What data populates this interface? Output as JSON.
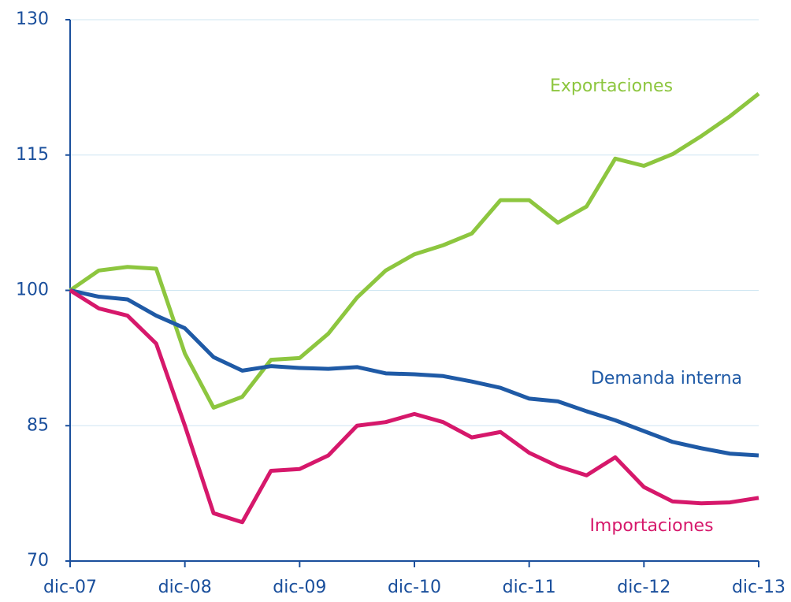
{
  "chart_data": {
    "type": "line",
    "categories": [
      "dic-07",
      null,
      null,
      null,
      "dic-08",
      null,
      null,
      null,
      "dic-09",
      null,
      null,
      null,
      "dic-10",
      null,
      null,
      null,
      "dic-11",
      null,
      null,
      null,
      "dic-12",
      null,
      null,
      null,
      "dic-13"
    ],
    "series": [
      {
        "name": "Exportaciones",
        "color": "#8dc63f",
        "values": [
          100,
          102.2,
          102.6,
          102.4,
          93,
          87,
          88.2,
          92.3,
          92.5,
          95.2,
          99.2,
          102.2,
          104,
          105,
          106.3,
          110,
          110,
          107.5,
          109.3,
          114.6,
          113.8,
          115.1,
          117.1,
          119.3,
          121.8
        ]
      },
      {
        "name": "Demanda interna",
        "color": "#1f5aa6",
        "values": [
          100,
          99.3,
          99,
          97.2,
          95.8,
          92.6,
          91.1,
          91.6,
          91.4,
          91.3,
          91.5,
          90.8,
          90.7,
          90.5,
          89.9,
          89.2,
          88,
          87.7,
          86.6,
          85.6,
          84.4,
          83.2,
          82.5,
          81.9,
          81.7
        ]
      },
      {
        "name": "Importaciones",
        "color": "#d6186b",
        "values": [
          100,
          98,
          97.2,
          94.1,
          85,
          75.3,
          74.3,
          80,
          80.2,
          81.7,
          85,
          85.4,
          86.3,
          85.4,
          83.7,
          84.3,
          82,
          80.5,
          79.5,
          81.5,
          78.2,
          76.6,
          76.4,
          76.5,
          77
        ]
      }
    ],
    "ylim": [
      70,
      130
    ],
    "yticks": [
      70,
      85,
      100,
      115,
      130
    ],
    "grid": true
  }
}
